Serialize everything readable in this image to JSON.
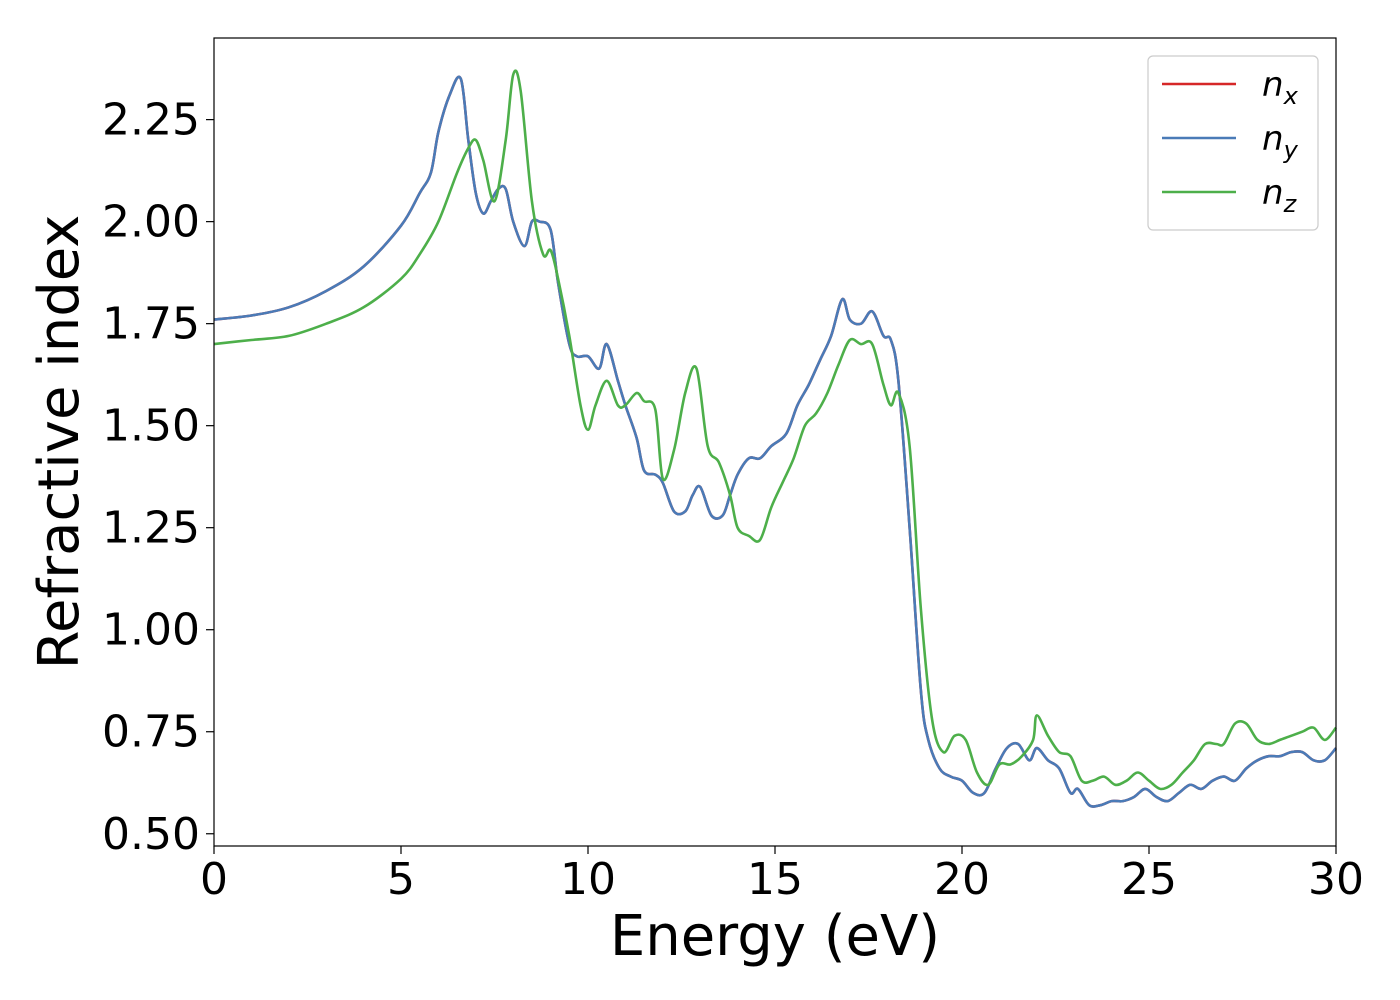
{
  "chart_data": {
    "type": "line",
    "title": "",
    "xlabel": "Energy (eV)",
    "ylabel": "Refractive index",
    "xlim": [
      0,
      30
    ],
    "ylim": [
      0.47,
      2.45
    ],
    "xticks": [
      0,
      5,
      10,
      15,
      20,
      25,
      30
    ],
    "xtick_labels": [
      "0",
      "5",
      "10",
      "15",
      "20",
      "25",
      "30"
    ],
    "yticks": [
      0.5,
      0.75,
      1.0,
      1.25,
      1.5,
      1.75,
      2.0,
      2.25
    ],
    "ytick_labels": [
      "0.50",
      "0.75",
      "1.00",
      "1.25",
      "1.50",
      "1.75",
      "2.00",
      "2.25"
    ],
    "grid": false,
    "legend_position": "top-right",
    "series": [
      {
        "name": "n",
        "subscript": "x",
        "color": "#d62728",
        "x": [
          0,
          1,
          2,
          3,
          4,
          5,
          5.5,
          5.8,
          6.0,
          6.3,
          6.6,
          6.8,
          7.0,
          7.2,
          7.4,
          7.6,
          7.8,
          8.0,
          8.3,
          8.5,
          8.7,
          9.0,
          9.2,
          9.5,
          9.7,
          10.0,
          10.3,
          10.5,
          10.8,
          11.0,
          11.3,
          11.5,
          11.8,
          12.0,
          12.3,
          12.6,
          12.8,
          13.0,
          13.3,
          13.6,
          13.8,
          14.0,
          14.3,
          14.6,
          14.9,
          15.3,
          15.6,
          15.9,
          16.2,
          16.5,
          16.8,
          17.0,
          17.3,
          17.6,
          17.9,
          18.1,
          18.3,
          18.6,
          18.9,
          19.1,
          19.4,
          19.7,
          20.0,
          20.3,
          20.6,
          20.9,
          21.2,
          21.5,
          21.8,
          22.0,
          22.3,
          22.6,
          22.9,
          23.1,
          23.4,
          23.7,
          24.0,
          24.3,
          24.6,
          24.9,
          25.2,
          25.5,
          25.8,
          26.1,
          26.4,
          26.7,
          27.0,
          27.3,
          27.6,
          27.9,
          28.2,
          28.5,
          28.8,
          29.1,
          29.4,
          29.7,
          30.0
        ],
        "values": [
          1.76,
          1.77,
          1.79,
          1.83,
          1.89,
          1.99,
          2.07,
          2.12,
          2.22,
          2.31,
          2.35,
          2.2,
          2.07,
          2.02,
          2.05,
          2.08,
          2.08,
          2.0,
          1.94,
          2.0,
          2.0,
          1.98,
          1.85,
          1.7,
          1.67,
          1.67,
          1.64,
          1.7,
          1.61,
          1.55,
          1.47,
          1.39,
          1.38,
          1.36,
          1.29,
          1.29,
          1.33,
          1.35,
          1.28,
          1.28,
          1.33,
          1.38,
          1.42,
          1.42,
          1.45,
          1.48,
          1.55,
          1.6,
          1.66,
          1.72,
          1.81,
          1.76,
          1.75,
          1.78,
          1.72,
          1.71,
          1.61,
          1.25,
          0.85,
          0.73,
          0.66,
          0.64,
          0.63,
          0.6,
          0.6,
          0.66,
          0.71,
          0.72,
          0.68,
          0.71,
          0.68,
          0.66,
          0.6,
          0.61,
          0.57,
          0.57,
          0.58,
          0.58,
          0.59,
          0.61,
          0.59,
          0.58,
          0.6,
          0.62,
          0.61,
          0.63,
          0.64,
          0.63,
          0.66,
          0.68,
          0.69,
          0.69,
          0.7,
          0.7,
          0.68,
          0.68,
          0.71
        ]
      },
      {
        "name": "n",
        "subscript": "y",
        "color": "#4a7bb7",
        "x": [
          0,
          1,
          2,
          3,
          4,
          5,
          5.5,
          5.8,
          6.0,
          6.3,
          6.6,
          6.8,
          7.0,
          7.2,
          7.4,
          7.6,
          7.8,
          8.0,
          8.3,
          8.5,
          8.7,
          9.0,
          9.2,
          9.5,
          9.7,
          10.0,
          10.3,
          10.5,
          10.8,
          11.0,
          11.3,
          11.5,
          11.8,
          12.0,
          12.3,
          12.6,
          12.8,
          13.0,
          13.3,
          13.6,
          13.8,
          14.0,
          14.3,
          14.6,
          14.9,
          15.3,
          15.6,
          15.9,
          16.2,
          16.5,
          16.8,
          17.0,
          17.3,
          17.6,
          17.9,
          18.1,
          18.3,
          18.6,
          18.9,
          19.1,
          19.4,
          19.7,
          20.0,
          20.3,
          20.6,
          20.9,
          21.2,
          21.5,
          21.8,
          22.0,
          22.3,
          22.6,
          22.9,
          23.1,
          23.4,
          23.7,
          24.0,
          24.3,
          24.6,
          24.9,
          25.2,
          25.5,
          25.8,
          26.1,
          26.4,
          26.7,
          27.0,
          27.3,
          27.6,
          27.9,
          28.2,
          28.5,
          28.8,
          29.1,
          29.4,
          29.7,
          30.0
        ],
        "values": [
          1.76,
          1.77,
          1.79,
          1.83,
          1.89,
          1.99,
          2.07,
          2.12,
          2.22,
          2.31,
          2.35,
          2.2,
          2.07,
          2.02,
          2.05,
          2.08,
          2.08,
          2.0,
          1.94,
          2.0,
          2.0,
          1.98,
          1.85,
          1.7,
          1.67,
          1.67,
          1.64,
          1.7,
          1.61,
          1.55,
          1.47,
          1.39,
          1.38,
          1.36,
          1.29,
          1.29,
          1.33,
          1.35,
          1.28,
          1.28,
          1.33,
          1.38,
          1.42,
          1.42,
          1.45,
          1.48,
          1.55,
          1.6,
          1.66,
          1.72,
          1.81,
          1.76,
          1.75,
          1.78,
          1.72,
          1.71,
          1.61,
          1.25,
          0.85,
          0.73,
          0.66,
          0.64,
          0.63,
          0.6,
          0.6,
          0.66,
          0.71,
          0.72,
          0.68,
          0.71,
          0.68,
          0.66,
          0.6,
          0.61,
          0.57,
          0.57,
          0.58,
          0.58,
          0.59,
          0.61,
          0.59,
          0.58,
          0.6,
          0.62,
          0.61,
          0.63,
          0.64,
          0.63,
          0.66,
          0.68,
          0.69,
          0.69,
          0.7,
          0.7,
          0.68,
          0.68,
          0.71
        ]
      },
      {
        "name": "n",
        "subscript": "z",
        "color": "#4daf4a",
        "x": [
          0,
          1,
          2,
          3,
          4,
          5,
          5.5,
          6.0,
          6.5,
          6.8,
          7.0,
          7.2,
          7.5,
          7.8,
          8.0,
          8.2,
          8.5,
          8.8,
          9.0,
          9.2,
          9.5,
          9.8,
          10.0,
          10.2,
          10.5,
          10.8,
          11.0,
          11.3,
          11.5,
          11.8,
          12.0,
          12.3,
          12.6,
          12.9,
          13.2,
          13.5,
          13.8,
          14.0,
          14.3,
          14.6,
          14.9,
          15.2,
          15.5,
          15.8,
          16.1,
          16.4,
          16.7,
          17.0,
          17.3,
          17.6,
          17.9,
          18.1,
          18.3,
          18.6,
          18.9,
          19.2,
          19.5,
          19.8,
          20.1,
          20.4,
          20.7,
          21.0,
          21.3,
          21.6,
          21.9,
          22.0,
          22.3,
          22.6,
          22.9,
          23.2,
          23.5,
          23.8,
          24.1,
          24.4,
          24.7,
          25.0,
          25.3,
          25.6,
          25.9,
          26.2,
          26.5,
          26.8,
          27.0,
          27.3,
          27.6,
          27.9,
          28.2,
          28.5,
          28.8,
          29.1,
          29.4,
          29.7,
          30.0
        ],
        "values": [
          1.7,
          1.71,
          1.72,
          1.75,
          1.79,
          1.86,
          1.92,
          2.0,
          2.12,
          2.18,
          2.2,
          2.15,
          2.05,
          2.2,
          2.36,
          2.32,
          2.05,
          1.92,
          1.93,
          1.86,
          1.72,
          1.55,
          1.49,
          1.55,
          1.61,
          1.55,
          1.55,
          1.58,
          1.56,
          1.54,
          1.37,
          1.44,
          1.58,
          1.64,
          1.45,
          1.41,
          1.33,
          1.25,
          1.23,
          1.22,
          1.3,
          1.36,
          1.42,
          1.5,
          1.53,
          1.58,
          1.65,
          1.71,
          1.7,
          1.7,
          1.6,
          1.55,
          1.58,
          1.45,
          1.05,
          0.78,
          0.7,
          0.74,
          0.73,
          0.65,
          0.62,
          0.67,
          0.67,
          0.69,
          0.73,
          0.79,
          0.74,
          0.7,
          0.69,
          0.63,
          0.63,
          0.64,
          0.62,
          0.63,
          0.65,
          0.63,
          0.61,
          0.62,
          0.65,
          0.68,
          0.72,
          0.72,
          0.72,
          0.77,
          0.77,
          0.73,
          0.72,
          0.73,
          0.74,
          0.75,
          0.76,
          0.73,
          0.76
        ]
      }
    ]
  }
}
